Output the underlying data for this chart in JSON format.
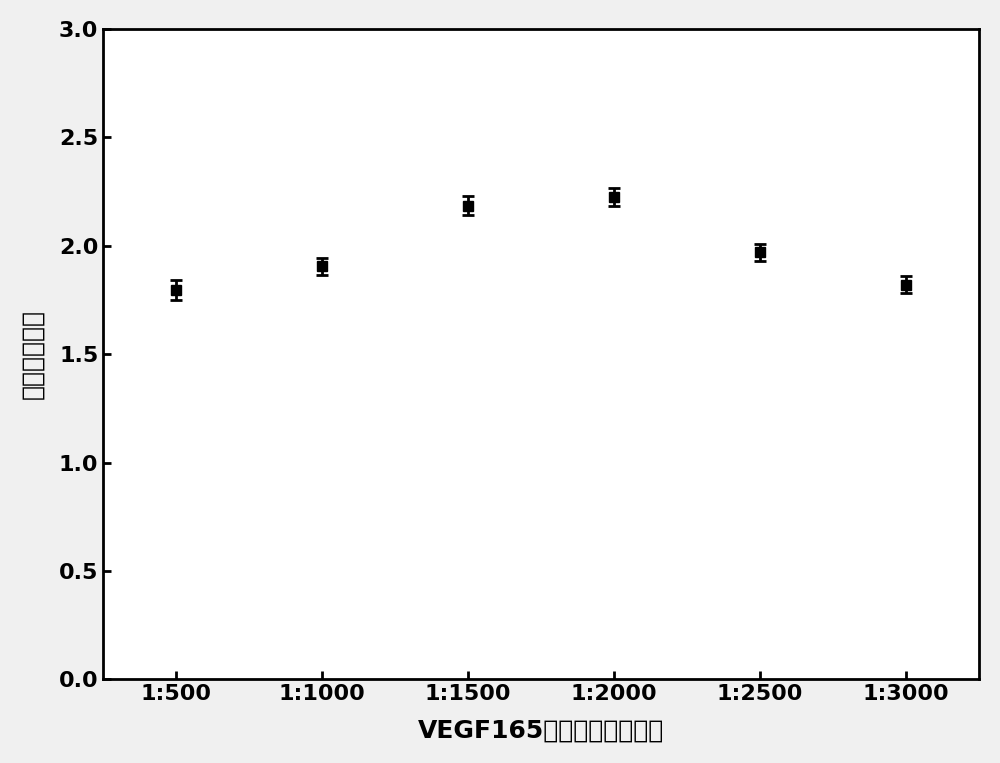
{
  "x_labels": [
    "1:500",
    "1:1000",
    "1:1500",
    "1:2000",
    "1:2500",
    "1:3000"
  ],
  "x_positions": [
    1,
    2,
    3,
    4,
    5,
    6
  ],
  "y_values": [
    1.795,
    1.905,
    2.185,
    2.225,
    1.97,
    1.82
  ],
  "y_errors": [
    0.045,
    0.04,
    0.045,
    0.04,
    0.04,
    0.04
  ],
  "xlabel": "VEGF165多克隆抵体稀释比",
  "ylabel": "阳性阴性比値",
  "ylim": [
    0.0,
    3.0
  ],
  "yticks": [
    0.0,
    0.5,
    1.0,
    1.5,
    2.0,
    2.5,
    3.0
  ],
  "line_color": "#000000",
  "marker": "s",
  "marker_size": 7,
  "line_width": 2.0,
  "capsize": 4,
  "label_fontsize": 18,
  "tick_fontsize": 16,
  "background_color": "#ffffff",
  "figure_bg": "#f0f0f0"
}
